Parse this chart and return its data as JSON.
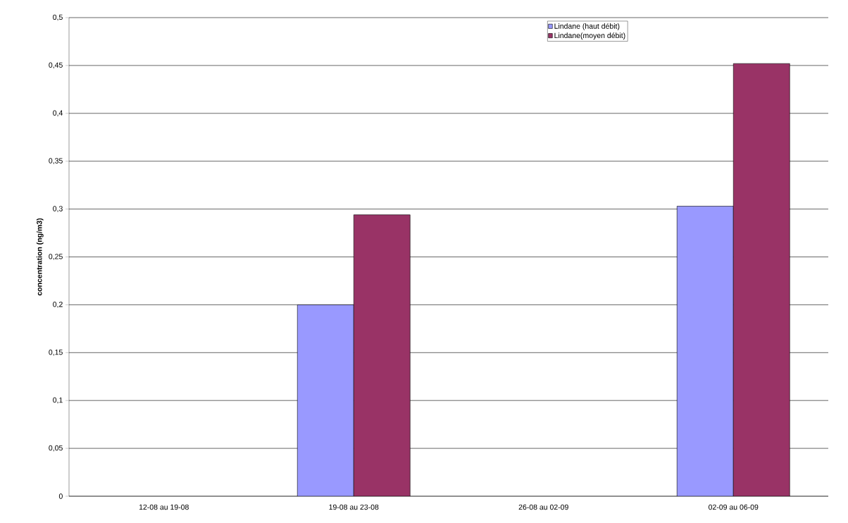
{
  "chart_data": {
    "type": "bar",
    "categories": [
      "12-08 au 19-08",
      "19-08 au 23-08",
      "26-08 au 02-09",
      "02-09 au 06-09"
    ],
    "series": [
      {
        "name": "Lindane (haut débit)",
        "color": "#9999ff",
        "values": [
          null,
          0.2,
          null,
          0.303
        ]
      },
      {
        "name": "Lindane(moyen débit)",
        "color": "#993366",
        "values": [
          null,
          0.294,
          null,
          0.452
        ]
      }
    ],
    "ylabel": "concentration (ng/m3)",
    "ylim": [
      0,
      0.5
    ],
    "yticks": [
      0,
      {
        "value": 0.05,
        "label": "0,05"
      },
      {
        "value": 0.1,
        "label": "0,1"
      },
      {
        "value": 0.15,
        "label": "0,15"
      },
      {
        "value": 0.2,
        "label": "0,2"
      },
      {
        "value": 0.25,
        "label": "0,25"
      },
      {
        "value": 0.3,
        "label": "0,3"
      },
      {
        "value": 0.35,
        "label": "0,35"
      },
      {
        "value": 0.4,
        "label": "0,4"
      },
      {
        "value": 0.45,
        "label": "0,45"
      },
      {
        "value": 0.5,
        "label": "0,5"
      }
    ],
    "grid": "y",
    "legend": "top right"
  }
}
